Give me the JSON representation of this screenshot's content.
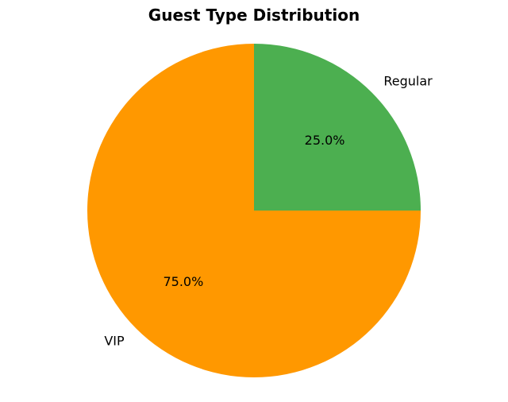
{
  "chart_data": {
    "type": "pie",
    "title": "Guest Type Distribution",
    "slices": [
      {
        "label": "Regular",
        "value": 25.0,
        "pct_label": "25.0%",
        "color": "#4caf50"
      },
      {
        "label": "VIP",
        "value": 75.0,
        "pct_label": "75.0%",
        "color": "#ff9800"
      }
    ],
    "start_angle": "top, clockwise"
  }
}
